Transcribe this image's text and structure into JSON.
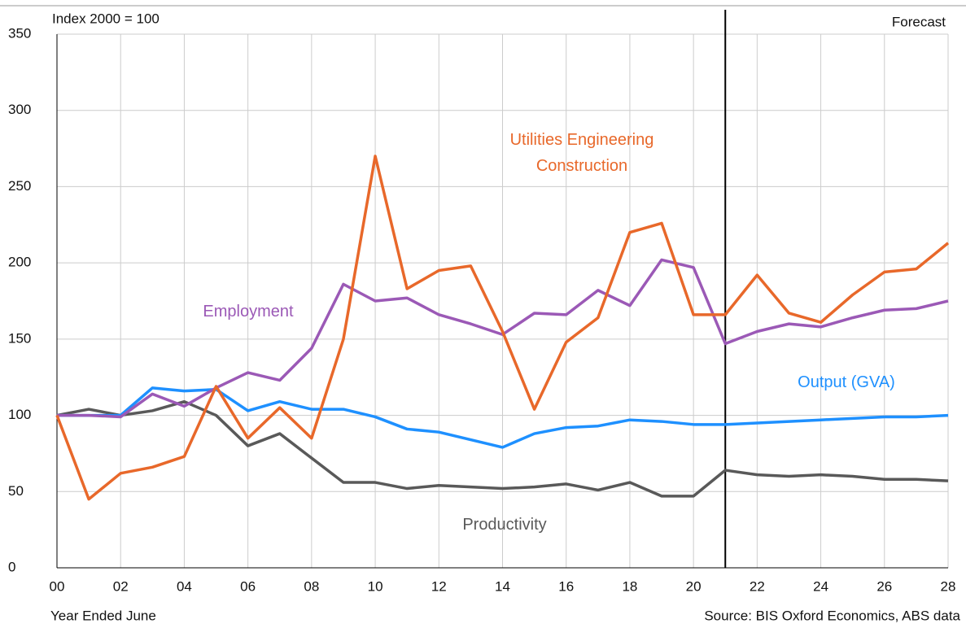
{
  "chart_data": {
    "type": "line",
    "ylabel": "Index 2000 = 100",
    "xlabel": "Year Ended June",
    "source": "Source: BIS Oxford Economics, ABS data",
    "forecast_label": "Forecast",
    "forecast_x": 21,
    "x": [
      0,
      1,
      2,
      3,
      4,
      5,
      6,
      7,
      8,
      9,
      10,
      11,
      12,
      13,
      14,
      15,
      16,
      17,
      18,
      19,
      20,
      21,
      22,
      23,
      24,
      25,
      26,
      27,
      28
    ],
    "series": [
      {
        "name": "Productivity",
        "color": "#595959",
        "values": [
          100,
          104,
          100,
          103,
          109,
          100,
          80,
          88,
          72,
          56,
          56,
          52,
          54,
          53,
          52,
          53,
          55,
          51,
          56,
          47,
          47,
          64,
          61,
          60,
          61,
          60,
          58,
          58,
          57
        ]
      },
      {
        "name": "Output (GVA)",
        "color": "#1e90ff",
        "values": [
          100,
          100,
          100,
          118,
          116,
          117,
          103,
          109,
          104,
          104,
          99,
          91,
          89,
          84,
          79,
          88,
          92,
          93,
          97,
          96,
          94,
          94,
          95,
          96,
          97,
          98,
          99,
          99,
          100
        ]
      },
      {
        "name": "Employment",
        "color": "#9b59b6",
        "values": [
          100,
          100,
          99,
          114,
          106,
          118,
          128,
          123,
          144,
          186,
          175,
          177,
          166,
          160,
          153,
          167,
          166,
          182,
          172,
          202,
          197,
          147,
          155,
          160,
          158,
          164,
          169,
          170,
          175
        ]
      },
      {
        "name": "Utilities Engineering Construction",
        "color": "#e8682a",
        "values": [
          100,
          45,
          62,
          66,
          73,
          119,
          85,
          105,
          85,
          150,
          270,
          183,
          195,
          198,
          155,
          104,
          148,
          164,
          220,
          226,
          166,
          166,
          192,
          167,
          161,
          179,
          194,
          196,
          213
        ]
      }
    ],
    "xlim": [
      0,
      28
    ],
    "xticks": [
      {
        "value": 0,
        "label": "00"
      },
      {
        "value": 2,
        "label": "02"
      },
      {
        "value": 4,
        "label": "04"
      },
      {
        "value": 6,
        "label": "06"
      },
      {
        "value": 8,
        "label": "08"
      },
      {
        "value": 10,
        "label": "10"
      },
      {
        "value": 12,
        "label": "12"
      },
      {
        "value": 14,
        "label": "14"
      },
      {
        "value": 16,
        "label": "16"
      },
      {
        "value": 18,
        "label": "18"
      },
      {
        "value": 20,
        "label": "20"
      },
      {
        "value": 22,
        "label": "22"
      },
      {
        "value": 24,
        "label": "24"
      },
      {
        "value": 26,
        "label": "26"
      },
      {
        "value": 28,
        "label": "28"
      }
    ],
    "ylim": [
      0,
      350
    ],
    "yticks": [
      0,
      50,
      100,
      150,
      200,
      250,
      300,
      350
    ],
    "grid": true
  }
}
